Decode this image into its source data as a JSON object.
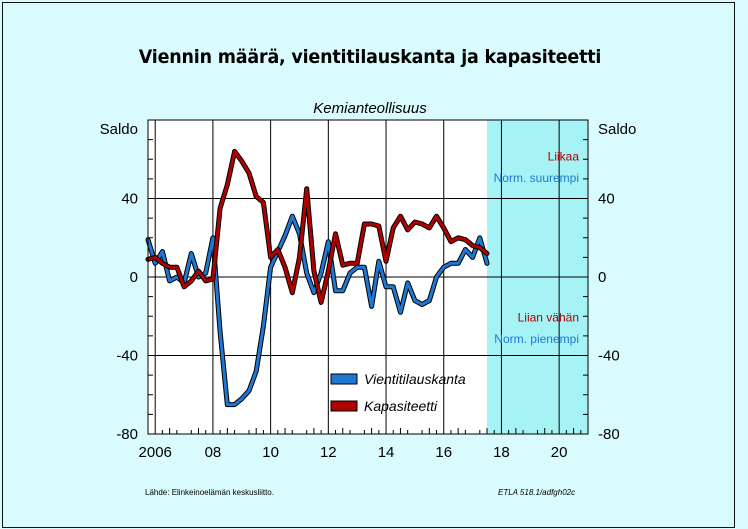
{
  "title": "Viennin määrä, vientitilauskanta ja kapasiteetti",
  "subtitle": "Kemianteollisuus",
  "source": "Lähde:   Elinkeinoelämän keskusliitto.",
  "code": "ETLA 518.1/adfgh02c",
  "colors": {
    "background": "#d9fbfd",
    "forecast_band": "#a6f3f6",
    "vientitilauskanta": "#1e78d2",
    "kapasiteetti": "#b00000"
  },
  "chart_data": {
    "type": "line",
    "ylabel_left": "Saldo",
    "ylabel_right": "Saldo",
    "ylim": [
      -80,
      80
    ],
    "xlim": [
      2005.75,
      2021.0
    ],
    "yticks": [
      -80,
      -40,
      0,
      40
    ],
    "ytick_labels": [
      "-80",
      "-40",
      "0",
      "40"
    ],
    "xticks": [
      2006,
      2008,
      2010,
      2012,
      2014,
      2016,
      2018,
      2020
    ],
    "xtick_labels": [
      "2006",
      "08",
      "10",
      "12",
      "14",
      "16",
      "18",
      "20"
    ],
    "grid": true,
    "shaded_region": [
      2017.5,
      2021.0
    ],
    "annotations": [
      {
        "text": "Liikaa",
        "series": "kapasiteetti",
        "y": 62
      },
      {
        "text": "Norm. suurempi",
        "series": "vientitilauskanta",
        "y": 51
      },
      {
        "text": "Liian vähän",
        "series": "kapasiteetti",
        "y": -20
      },
      {
        "text": "Norm. pienempi",
        "series": "vientitilauskanta",
        "y": -31
      }
    ],
    "legend_position": "bottom-center",
    "series": [
      {
        "key": "vientitilauskanta",
        "name": "Vientitilauskanta",
        "color": "#1e78d2",
        "x": [
          2005.75,
          2006.0,
          2006.25,
          2006.5,
          2006.75,
          2007.0,
          2007.25,
          2007.5,
          2007.75,
          2008.0,
          2008.25,
          2008.5,
          2008.75,
          2009.0,
          2009.25,
          2009.5,
          2009.75,
          2010.0,
          2010.25,
          2010.5,
          2010.75,
          2011.0,
          2011.25,
          2011.5,
          2011.75,
          2012.0,
          2012.25,
          2012.5,
          2012.75,
          2013.0,
          2013.25,
          2013.5,
          2013.75,
          2014.0,
          2014.25,
          2014.5,
          2014.75,
          2015.0,
          2015.25,
          2015.5,
          2015.75,
          2016.0,
          2016.25,
          2016.5,
          2016.75,
          2017.0,
          2017.25,
          2017.5
        ],
        "values": [
          19,
          7,
          13,
          -2,
          0,
          -3,
          12,
          0,
          2,
          20,
          -28,
          -65,
          -65,
          -62,
          -58,
          -48,
          -25,
          5,
          13,
          21,
          31,
          22,
          2,
          -8,
          2,
          18,
          -7,
          -7,
          2,
          5,
          5,
          -15,
          8,
          -5,
          -5,
          -18,
          -3,
          -12,
          -14,
          -12,
          0,
          5,
          7,
          7,
          14,
          10,
          20,
          7
        ]
      },
      {
        "key": "kapasiteetti",
        "name": "Kapasiteetti",
        "color": "#b00000",
        "x": [
          2005.75,
          2006.0,
          2006.25,
          2006.5,
          2006.75,
          2007.0,
          2007.25,
          2007.5,
          2007.75,
          2008.0,
          2008.25,
          2008.5,
          2008.75,
          2009.0,
          2009.25,
          2009.5,
          2009.75,
          2010.0,
          2010.25,
          2010.5,
          2010.75,
          2011.0,
          2011.25,
          2011.5,
          2011.75,
          2012.0,
          2012.25,
          2012.5,
          2012.75,
          2013.0,
          2013.25,
          2013.5,
          2013.75,
          2014.0,
          2014.25,
          2014.5,
          2014.75,
          2015.0,
          2015.25,
          2015.5,
          2015.75,
          2016.0,
          2016.25,
          2016.5,
          2016.75,
          2017.0,
          2017.25,
          2017.5
        ],
        "values": [
          9,
          10,
          7,
          5,
          5,
          -5,
          -2,
          3,
          -2,
          -1,
          35,
          47,
          64,
          59,
          53,
          41,
          38,
          10,
          14,
          5,
          -8,
          10,
          45,
          3,
          -13,
          3,
          22,
          6,
          7,
          7,
          27,
          27,
          26,
          8,
          25,
          31,
          24,
          28,
          27,
          25,
          31,
          25,
          18,
          20,
          19,
          16,
          15,
          12
        ]
      }
    ]
  }
}
